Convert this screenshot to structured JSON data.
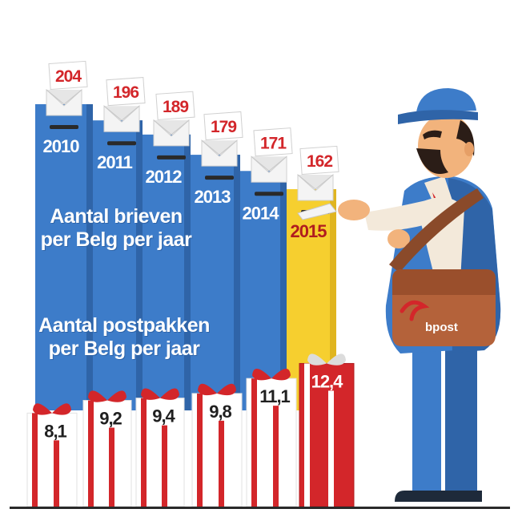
{
  "colors": {
    "box_blue": "#3d7cc9",
    "box_blue_dark": "#2f64a8",
    "box_yellow": "#f6cf2f",
    "red": "#d3262a",
    "white": "#ffffff",
    "label_dark": "#1f1f1f"
  },
  "chart_data": [
    {
      "type": "bar",
      "categories": [
        "2010",
        "2011",
        "2012",
        "2013",
        "2014",
        "2015"
      ],
      "values": [
        204,
        196,
        189,
        179,
        171,
        162
      ],
      "title": "",
      "ylabel": [
        "Aantal brieven",
        "per Belg per jaar"
      ],
      "highlight": "2015"
    },
    {
      "type": "bar",
      "categories": [
        "2010",
        "2011",
        "2012",
        "2013",
        "2014",
        "2015"
      ],
      "values": [
        8.1,
        9.2,
        9.4,
        9.8,
        11.1,
        12.4
      ],
      "value_labels": [
        "8,1",
        "9,2",
        "9,4",
        "9,8",
        "11,1",
        "12,4"
      ],
      "ylabel": [
        "Aantal postpakken",
        "per Belg per jaar"
      ]
    }
  ],
  "illustration": {
    "name": "postman-icon",
    "bag_brand": "bpost"
  }
}
